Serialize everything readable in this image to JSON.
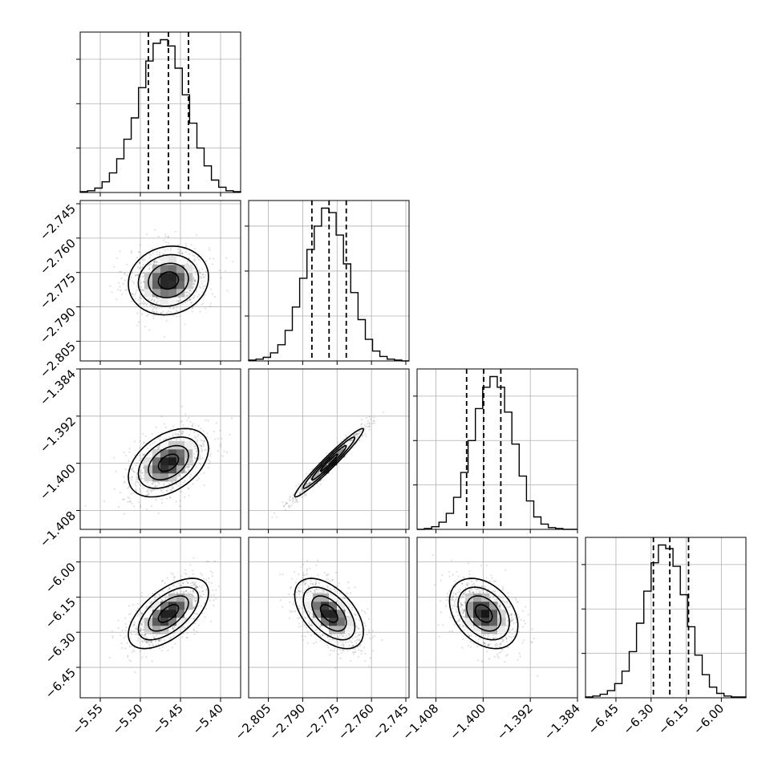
{
  "chart_data": {
    "type": "corner",
    "title": "",
    "parameters": [
      {
        "id": "p0",
        "label": "",
        "range": [
          -5.575,
          -5.375
        ],
        "ticks": [
          -5.55,
          -5.5,
          -5.45,
          -5.4
        ],
        "tick_labels": [
          "−5.55",
          "−5.50",
          "−5.45",
          "−5.40"
        ],
        "mean": -5.465,
        "std": 0.025,
        "quantiles": [
          -5.49,
          -5.465,
          -5.44
        ]
      },
      {
        "id": "p1",
        "label": "",
        "range": [
          -2.8136,
          -2.7436
        ],
        "ticks": [
          -2.805,
          -2.79,
          -2.775,
          -2.76,
          -2.745
        ],
        "tick_labels": [
          "−2.805",
          "−2.790",
          "−2.775",
          "−2.760",
          "−2.745"
        ],
        "mean": -2.7785,
        "std": 0.0075,
        "quantiles": [
          -2.786,
          -2.7785,
          -2.771
        ]
      },
      {
        "id": "p2",
        "label": "",
        "range": [
          -1.4112,
          -1.384
        ],
        "ticks": [
          -1.408,
          -1.4,
          -1.392,
          -1.384
        ],
        "tick_labels": [
          "−1.408",
          "−1.400",
          "−1.392",
          "−1.384"
        ],
        "mean": -1.3999,
        "std": 0.0029,
        "quantiles": [
          -1.4028,
          -1.3999,
          -1.397
        ]
      },
      {
        "id": "p3",
        "label": "",
        "range": [
          -6.58,
          -5.895
        ],
        "ticks": [
          -6.45,
          -6.3,
          -6.15,
          -6.0
        ],
        "tick_labels": [
          "−6.45",
          "−6.30",
          "−6.15",
          "−6.00"
        ],
        "mean": -6.22,
        "std": 0.075,
        "quantiles": [
          -6.29,
          -6.22,
          -6.14
        ]
      }
    ],
    "histograms": [
      {
        "param": "p0",
        "counts": [
          1,
          2,
          5,
          12,
          22,
          38,
          60,
          84,
          118,
          148,
          168,
          172,
          165,
          140,
          110,
          78,
          50,
          30,
          14,
          6,
          2,
          1
        ]
      },
      {
        "param": "p1",
        "counts": [
          1,
          2,
          4,
          9,
          18,
          34,
          60,
          92,
          124,
          150,
          170,
          165,
          140,
          108,
          76,
          46,
          24,
          11,
          5,
          2,
          1,
          0
        ]
      },
      {
        "param": "p2",
        "counts": [
          0,
          1,
          3,
          8,
          18,
          36,
          64,
          100,
          136,
          160,
          172,
          160,
          132,
          96,
          60,
          32,
          14,
          6,
          2,
          1,
          0,
          0
        ]
      },
      {
        "param": "p3",
        "counts": [
          1,
          2,
          4,
          8,
          16,
          30,
          52,
          84,
          120,
          152,
          172,
          168,
          148,
          116,
          80,
          48,
          26,
          12,
          5,
          2,
          1,
          1
        ]
      }
    ],
    "correlations": {
      "p1_p0": 0.1,
      "p2_p0": 0.42,
      "p2_p1": 0.97,
      "p3_p0": 0.6,
      "p3_p1": -0.52,
      "p3_p2": -0.35
    },
    "contour_levels_sigma": [
      0.5,
      1.0,
      1.5,
      2.0
    ],
    "grid": true,
    "legend": "none"
  }
}
